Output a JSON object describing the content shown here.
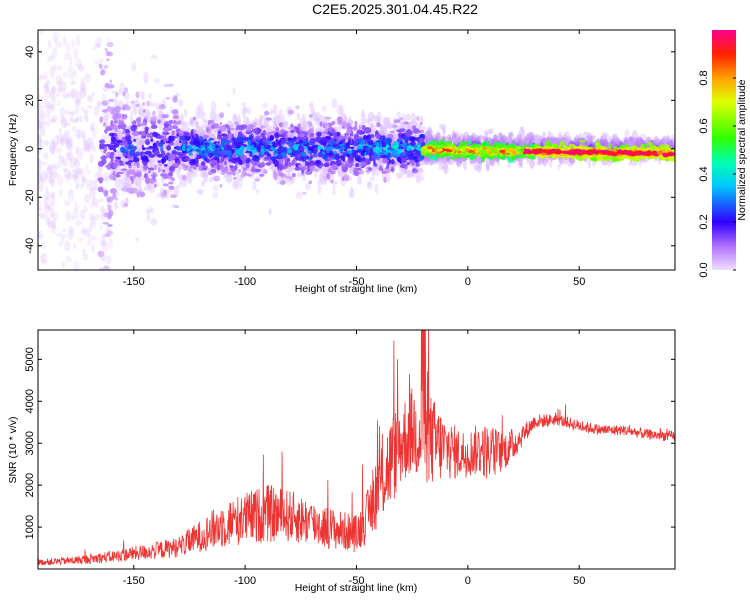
{
  "title": "C2E5.2025.301.04.45.R22",
  "colors": {
    "snr_line": "#ee3333",
    "background": "#ffffff",
    "axis": "#000000"
  },
  "chart_data": [
    {
      "type": "heatmap",
      "name": "spectrogram",
      "xlabel": "Height of straight line (km)",
      "ylabel": "Frequency (Hz)",
      "xlim": [
        -193,
        93
      ],
      "ylim": [
        -50,
        49
      ],
      "xticks": [
        -150,
        -100,
        -50,
        0,
        50
      ],
      "xtick_labels": [
        "-150",
        "-100",
        "-50",
        "0",
        "50"
      ],
      "yticks": [
        -40,
        -20,
        0,
        20,
        40
      ],
      "ytick_labels": [
        "-40",
        "-20",
        "0",
        "20",
        "40"
      ],
      "colorbar": {
        "label": "Normalized spectral amplitude",
        "range": [
          0,
          1
        ],
        "ticks": [
          0.0,
          0.2,
          0.4,
          0.6,
          0.8
        ],
        "tick_labels": [
          "0.0",
          "0.2",
          "0.4",
          "0.6",
          "0.8"
        ],
        "colormap": "rainbow"
      },
      "description_bands": [
        {
          "x_range": [
            -193,
            -160
          ],
          "freq_spread": 49,
          "amplitude": 0.15
        },
        {
          "x_range": [
            -160,
            -130
          ],
          "freq_spread": 20,
          "amplitude": 0.25
        },
        {
          "x_range": [
            -130,
            -50
          ],
          "freq_spread": 12,
          "amplitude": 0.35
        },
        {
          "x_range": [
            -50,
            -20
          ],
          "freq_spread": 10,
          "amplitude": 0.4
        },
        {
          "x_range": [
            -20,
            93
          ],
          "freq_spread": 3,
          "amplitude": 0.8,
          "center_freq_end": -2
        }
      ]
    },
    {
      "type": "line",
      "name": "snr",
      "xlabel": "Height of straight line (km)",
      "ylabel": "SNR (10 * v/v)",
      "xlim": [
        -193,
        93
      ],
      "ylim": [
        0,
        5700
      ],
      "xticks": [
        -150,
        -100,
        -50,
        0,
        50
      ],
      "xtick_labels": [
        "-150",
        "-100",
        "-50",
        "0",
        "50"
      ],
      "yticks": [
        1000,
        2000,
        3000,
        4000,
        5000
      ],
      "ytick_labels": [
        "1000",
        "2000",
        "3000",
        "4000",
        "5000"
      ],
      "envelope": {
        "x": [
          -193,
          -175,
          -160,
          -150,
          -140,
          -130,
          -120,
          -110,
          -100,
          -90,
          -80,
          -70,
          -60,
          -50,
          -45,
          -40,
          -35,
          -30,
          -25,
          -20,
          -15,
          -10,
          -5,
          0,
          5,
          10,
          15,
          20,
          25,
          30,
          40,
          50,
          60,
          70,
          80,
          93
        ],
        "y": [
          150,
          200,
          280,
          350,
          420,
          500,
          750,
          1000,
          1150,
          1250,
          1200,
          1050,
          900,
          800,
          1200,
          1900,
          2400,
          2900,
          3200,
          3100,
          2900,
          2800,
          2700,
          2700,
          2800,
          2700,
          2750,
          2900,
          3200,
          3500,
          3550,
          3400,
          3300,
          3300,
          3200,
          3150
        ],
        "noise": [
          100,
          150,
          200,
          250,
          300,
          350,
          550,
          800,
          900,
          1000,
          900,
          800,
          700,
          650,
          900,
          1400,
          1600,
          1500,
          1500,
          1800,
          1500,
          1100,
          900,
          800,
          900,
          1000,
          700,
          600,
          350,
          250,
          200,
          200,
          180,
          180,
          180,
          180
        ]
      }
    }
  ]
}
